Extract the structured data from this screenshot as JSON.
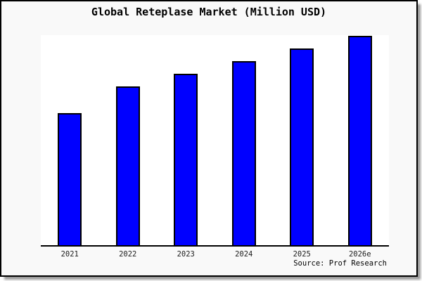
{
  "window": {
    "figure_background": "#f9f9f9",
    "frame_border_color": "#000000",
    "plot_background": "#ffffff"
  },
  "chart_data": {
    "type": "bar",
    "title": "Global Reteplase Market (Million USD)",
    "categories": [
      "2021",
      "2022",
      "2023",
      "2024",
      "2025",
      "2026e"
    ],
    "values": [
      63,
      76,
      82,
      88,
      94,
      100
    ],
    "value_scale": "relative; y-axis is unlabeled, values normalized to 2026e = 100",
    "xlabel": "",
    "ylabel": "",
    "y_axis_ticks": [],
    "ylim": [
      0,
      101
    ],
    "grid": false,
    "legend": false,
    "bar_color": "#0000ff",
    "bar_edge_color": "#000000",
    "axis_line_color": "#000000",
    "source": "Source: Prof Research"
  }
}
